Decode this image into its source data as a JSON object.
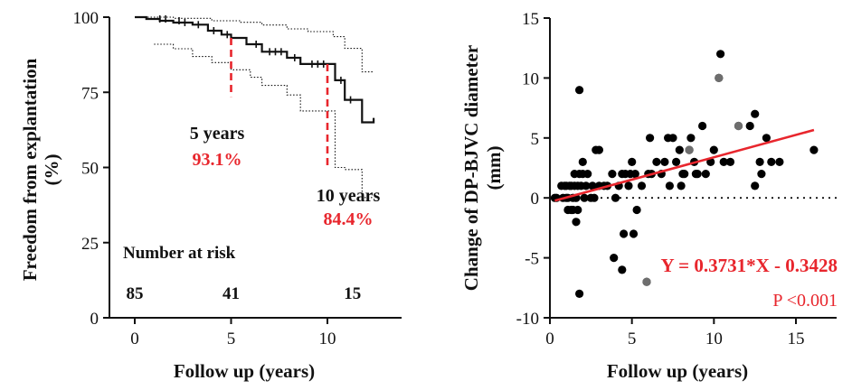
{
  "chart_data": [
    {
      "type": "line",
      "subtype": "kaplan-meier",
      "title": "",
      "xlabel": "Follow up (years)",
      "ylabel": "Freedom from explantation (%)",
      "ylabel_lines": [
        "Freedom from explantation",
        "(%)"
      ],
      "xlim": [
        -1,
        13
      ],
      "ylim": [
        0,
        100
      ],
      "xticks": [
        0,
        5,
        10
      ],
      "yticks": [
        0,
        25,
        50,
        75,
        100
      ],
      "grid": false,
      "series": [
        {
          "role": "estimate",
          "step_points": [
            [
              0,
              100
            ],
            [
              0.6,
              100
            ],
            [
              0.6,
              99.4
            ],
            [
              1.3,
              99.4
            ],
            [
              1.3,
              98.8
            ],
            [
              2,
              98.8
            ],
            [
              2,
              98.2
            ],
            [
              3,
              98.2
            ],
            [
              3,
              97.5
            ],
            [
              3.8,
              97.5
            ],
            [
              3.8,
              95.5
            ],
            [
              4.5,
              95.5
            ],
            [
              4.5,
              94.2
            ],
            [
              5,
              94.2
            ],
            [
              5,
              93.1
            ],
            [
              5.8,
              93.1
            ],
            [
              5.8,
              91
            ],
            [
              6.6,
              91
            ],
            [
              6.6,
              88.5
            ],
            [
              7.9,
              88.5
            ],
            [
              7.9,
              86.5
            ],
            [
              8.6,
              86.5
            ],
            [
              8.6,
              84.4
            ],
            [
              10,
              84.4
            ],
            [
              10,
              84.4
            ],
            [
              10.4,
              84.4
            ],
            [
              10.4,
              79
            ],
            [
              10.9,
              79
            ],
            [
              10.9,
              72.5
            ],
            [
              11.8,
              72.5
            ],
            [
              11.8,
              65
            ],
            [
              12.4,
              65
            ],
            [
              12.4,
              66.5
            ]
          ]
        },
        {
          "role": "upper-ci",
          "step_points": [
            [
              0,
              100
            ],
            [
              2,
              100
            ],
            [
              2,
              99.6
            ],
            [
              4,
              99.6
            ],
            [
              4,
              98.8
            ],
            [
              5.5,
              98.8
            ],
            [
              5.5,
              98.3
            ],
            [
              6.6,
              98.3
            ],
            [
              6.6,
              97.4
            ],
            [
              7.9,
              97.4
            ],
            [
              7.9,
              96.1
            ],
            [
              9,
              96.1
            ],
            [
              9,
              95.2
            ],
            [
              10.3,
              95.2
            ],
            [
              10.3,
              93.5
            ],
            [
              10.9,
              93.5
            ],
            [
              10.9,
              89.6
            ],
            [
              11.8,
              89.6
            ],
            [
              11.8,
              81.8
            ],
            [
              12.4,
              81.8
            ]
          ]
        },
        {
          "role": "lower-ci",
          "step_points": [
            [
              1,
              91
            ],
            [
              2,
              91
            ],
            [
              2,
              89.5
            ],
            [
              3,
              89.5
            ],
            [
              3,
              86.9
            ],
            [
              4,
              86.9
            ],
            [
              4,
              84.9
            ],
            [
              5,
              84.9
            ],
            [
              5,
              82.5
            ],
            [
              6,
              82.5
            ],
            [
              6,
              80
            ],
            [
              6.6,
              80
            ],
            [
              6.6,
              77.3
            ],
            [
              7.9,
              77.3
            ],
            [
              7.9,
              74.1
            ],
            [
              8.6,
              74.1
            ],
            [
              8.6,
              68.8
            ],
            [
              10,
              68.8
            ],
            [
              10,
              68.8
            ],
            [
              10.4,
              68.8
            ],
            [
              10.4,
              50
            ],
            [
              10.9,
              50
            ],
            [
              10.9,
              49.3
            ],
            [
              11.8,
              49.3
            ],
            [
              11.8,
              40
            ],
            [
              12.4,
              40
            ]
          ]
        }
      ],
      "censor_ticks": [
        [
          1.3,
          99.4
        ],
        [
          1.6,
          99.4
        ],
        [
          2.3,
          98.8
        ],
        [
          2.6,
          98.2
        ],
        [
          3.3,
          97.5
        ],
        [
          4.1,
          95.5
        ],
        [
          4.8,
          94.2
        ],
        [
          6.3,
          91
        ],
        [
          7,
          88.5
        ],
        [
          7.3,
          88.5
        ],
        [
          7.6,
          88.5
        ],
        [
          8.3,
          86.5
        ],
        [
          9.2,
          84.4
        ],
        [
          9.5,
          84.4
        ],
        [
          9.8,
          84.4
        ],
        [
          10.7,
          79
        ],
        [
          11.2,
          72.5
        ]
      ],
      "markers": [
        {
          "x": 5,
          "from": 93.1,
          "to": 73.5
        },
        {
          "x": 10,
          "from": 84.4,
          "to": 50.5
        }
      ],
      "annotations": [
        {
          "label": "5 years",
          "value": "93.1%"
        },
        {
          "label": "10 years",
          "value": "84.4%"
        }
      ],
      "risk_table": {
        "title": "Number at risk",
        "entries": [
          {
            "x": 0,
            "count": "85"
          },
          {
            "x": 5,
            "count": "41"
          },
          {
            "x": 11.3,
            "count": "15"
          }
        ]
      },
      "colors": {
        "line": "#111111",
        "marker": "#e8262d"
      }
    },
    {
      "type": "scatter",
      "title": "",
      "xlabel": "Follow up (years)",
      "ylabel": "Change of DP-BJVC diameter (mm)",
      "ylabel_lines": [
        "Change of DP-BJVC diameter",
        "(mm)"
      ],
      "xlim": [
        0,
        17.5
      ],
      "ylim": [
        -10,
        15
      ],
      "xticks": [
        0,
        5,
        10,
        15
      ],
      "yticks": [
        -10,
        -5,
        0,
        5,
        10,
        15
      ],
      "grid": false,
      "zero_line": "dotted",
      "points": [
        [
          0.3,
          0
        ],
        [
          0.4,
          0
        ],
        [
          0.7,
          1
        ],
        [
          0.8,
          0
        ],
        [
          0.9,
          1
        ],
        [
          1,
          1
        ],
        [
          1,
          0
        ],
        [
          1.1,
          -1
        ],
        [
          1.1,
          0
        ],
        [
          1.2,
          1
        ],
        [
          1.3,
          -1
        ],
        [
          1.3,
          1
        ],
        [
          1.4,
          0
        ],
        [
          1.4,
          -1
        ],
        [
          1.5,
          2
        ],
        [
          1.5,
          1
        ],
        [
          1.6,
          -2
        ],
        [
          1.6,
          0
        ],
        [
          1.7,
          -1
        ],
        [
          1.7,
          1
        ],
        [
          1.8,
          9
        ],
        [
          1.8,
          2
        ],
        [
          1.8,
          -8
        ],
        [
          1.9,
          1
        ],
        [
          2,
          2
        ],
        [
          2,
          3
        ],
        [
          2.1,
          0
        ],
        [
          2.2,
          1
        ],
        [
          2.3,
          2
        ],
        [
          2.5,
          0
        ],
        [
          2.6,
          1
        ],
        [
          2.7,
          0
        ],
        [
          2.8,
          4
        ],
        [
          3,
          4
        ],
        [
          3,
          1
        ],
        [
          3.3,
          1
        ],
        [
          3.5,
          1
        ],
        [
          3.8,
          2
        ],
        [
          3.9,
          -5
        ],
        [
          4,
          0
        ],
        [
          4.2,
          1
        ],
        [
          4.4,
          -6
        ],
        [
          4.4,
          2
        ],
        [
          4.5,
          -3
        ],
        [
          4.6,
          2
        ],
        [
          4.8,
          1
        ],
        [
          4.9,
          2
        ],
        [
          5,
          3
        ],
        [
          5.1,
          -3
        ],
        [
          5.2,
          2
        ],
        [
          5.3,
          -1
        ],
        [
          5.6,
          1
        ],
        [
          5.9,
          -7
        ],
        [
          6,
          2
        ],
        [
          6.1,
          5
        ],
        [
          6.2,
          2
        ],
        [
          6.5,
          3
        ],
        [
          6.8,
          2
        ],
        [
          7,
          3
        ],
        [
          7.2,
          5
        ],
        [
          7.3,
          1
        ],
        [
          7.5,
          5
        ],
        [
          7.7,
          3
        ],
        [
          7.9,
          4
        ],
        [
          8,
          1
        ],
        [
          8.1,
          2
        ],
        [
          8.2,
          2
        ],
        [
          8.5,
          4
        ],
        [
          8.6,
          5
        ],
        [
          8.8,
          3
        ],
        [
          8.9,
          2
        ],
        [
          9,
          2
        ],
        [
          9.3,
          6
        ],
        [
          9.5,
          2
        ],
        [
          9.8,
          3
        ],
        [
          10,
          4
        ],
        [
          10.3,
          10
        ],
        [
          10.4,
          12
        ],
        [
          10.6,
          3
        ],
        [
          11,
          3
        ],
        [
          11.5,
          6
        ],
        [
          12.2,
          6
        ],
        [
          12.5,
          7
        ],
        [
          12.5,
          1
        ],
        [
          12.8,
          3
        ],
        [
          12.9,
          2
        ],
        [
          13.2,
          5
        ],
        [
          13.5,
          3
        ],
        [
          14,
          3
        ],
        [
          16.1,
          4
        ]
      ],
      "highlight_points": [
        [
          5.9,
          -7
        ],
        [
          8.5,
          4
        ],
        [
          10.3,
          10
        ],
        [
          11.5,
          6
        ]
      ],
      "regression": {
        "slope": 0.3731,
        "intercept": -0.3428,
        "x_range": [
          0.3,
          16.1
        ],
        "equation": "Y = 0.3731*X - 0.3428",
        "p_text": "P <0.001"
      },
      "colors": {
        "points": "#000000",
        "highlight": "#6e6e6e",
        "fit": "#e8262d"
      }
    }
  ]
}
